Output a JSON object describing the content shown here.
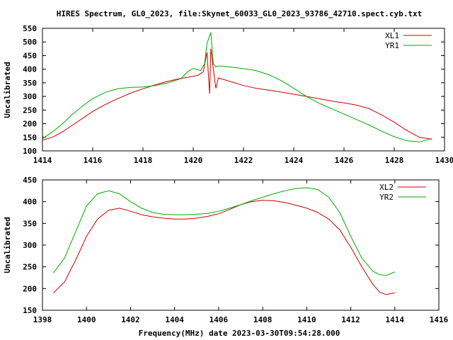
{
  "title": "HIRES Spectrum, GL0_2023, file:Skynet_60033_GL0_2023_93786_42710.spect.cyb.txt",
  "xlabel": "Frequency(MHz) date 2023-03-30T09:54:28.000",
  "chart_data": [
    {
      "type": "line",
      "title": "HIRES Spectrum, GL0_2023, file:Skynet_60033_GL0_2023_93786_42710.spect.cyb.txt",
      "xlabel": "",
      "ylabel": "Uncalibrated",
      "xlim": [
        1414,
        1430
      ],
      "ylim": [
        100,
        550
      ],
      "xticks": [
        1414,
        1416,
        1418,
        1420,
        1422,
        1424,
        1426,
        1428,
        1430
      ],
      "yticks": [
        100,
        150,
        200,
        250,
        300,
        350,
        400,
        450,
        500,
        550
      ],
      "legend": "top-right",
      "grid": false,
      "series": [
        {
          "name": "XL1",
          "color": "#cc0000",
          "x": [
            1414.0,
            1414.4,
            1414.8,
            1415.2,
            1415.6,
            1416.0,
            1416.5,
            1417.0,
            1417.5,
            1418.0,
            1418.5,
            1419.0,
            1419.5,
            1419.9,
            1420.2,
            1420.4,
            1420.55,
            1420.65,
            1420.7,
            1420.8,
            1420.9,
            1421.0,
            1421.5,
            1422.0,
            1422.5,
            1423.0,
            1423.5,
            1424.0,
            1424.5,
            1425.0,
            1425.5,
            1426.0,
            1426.5,
            1427.0,
            1427.5,
            1428.0,
            1428.5,
            1429.0,
            1429.5
          ],
          "values": [
            140,
            150,
            170,
            195,
            220,
            245,
            270,
            292,
            312,
            328,
            343,
            356,
            366,
            372,
            378,
            390,
            462,
            310,
            475,
            400,
            330,
            368,
            354,
            340,
            330,
            323,
            316,
            308,
            300,
            292,
            283,
            276,
            268,
            255,
            232,
            205,
            175,
            150,
            143
          ]
        },
        {
          "name": "YR1",
          "color": "#00aa00",
          "x": [
            1414.0,
            1414.4,
            1414.8,
            1415.2,
            1415.6,
            1416.0,
            1416.5,
            1417.0,
            1417.5,
            1418.0,
            1418.5,
            1419.0,
            1419.5,
            1419.8,
            1420.0,
            1420.3,
            1420.45,
            1420.55,
            1420.7,
            1420.8,
            1420.9,
            1421.0,
            1421.5,
            1422.0,
            1422.5,
            1423.0,
            1423.5,
            1424.0,
            1424.5,
            1425.0,
            1425.5,
            1426.0,
            1426.5,
            1427.0,
            1427.5,
            1428.0,
            1428.5,
            1429.0,
            1429.5
          ],
          "values": [
            145,
            170,
            200,
            235,
            265,
            292,
            315,
            328,
            333,
            335,
            340,
            350,
            365,
            392,
            403,
            395,
            420,
            495,
            535,
            420,
            408,
            412,
            408,
            402,
            395,
            380,
            358,
            330,
            300,
            275,
            255,
            235,
            215,
            195,
            172,
            152,
            137,
            133,
            145
          ]
        }
      ]
    },
    {
      "type": "line",
      "title": "",
      "xlabel": "Frequency(MHz) date 2023-03-30T09:54:28.000",
      "ylabel": "Uncalibrated",
      "xlim": [
        1398,
        1416
      ],
      "ylim": [
        150,
        450
      ],
      "xticks": [
        1398,
        1400,
        1402,
        1404,
        1406,
        1408,
        1410,
        1412,
        1414,
        1416
      ],
      "yticks": [
        150,
        200,
        250,
        300,
        350,
        400,
        450
      ],
      "legend": "top-right",
      "grid": false,
      "series": [
        {
          "name": "XL2",
          "color": "#cc0000",
          "x": [
            1398.5,
            1399.0,
            1399.5,
            1400.0,
            1400.5,
            1401.0,
            1401.5,
            1402.0,
            1402.5,
            1403.0,
            1403.5,
            1404.0,
            1404.5,
            1405.0,
            1405.5,
            1406.0,
            1406.5,
            1407.0,
            1407.5,
            1408.0,
            1408.5,
            1409.0,
            1409.5,
            1410.0,
            1410.5,
            1411.0,
            1411.5,
            1412.0,
            1412.5,
            1413.0,
            1413.3,
            1413.6,
            1414.0
          ],
          "values": [
            190,
            215,
            265,
            320,
            360,
            380,
            385,
            378,
            370,
            365,
            362,
            360,
            360,
            362,
            366,
            372,
            382,
            393,
            400,
            403,
            402,
            398,
            392,
            385,
            375,
            360,
            335,
            295,
            250,
            210,
            192,
            186,
            190
          ]
        },
        {
          "name": "YR2",
          "color": "#00aa00",
          "x": [
            1398.5,
            1399.0,
            1399.5,
            1400.0,
            1400.5,
            1401.0,
            1401.5,
            1402.0,
            1402.5,
            1403.0,
            1403.5,
            1404.0,
            1404.5,
            1405.0,
            1405.5,
            1406.0,
            1406.5,
            1407.0,
            1407.5,
            1408.0,
            1408.5,
            1409.0,
            1409.5,
            1410.0,
            1410.5,
            1411.0,
            1411.5,
            1412.0,
            1412.5,
            1413.0,
            1413.3,
            1413.6,
            1414.0
          ],
          "values": [
            236,
            270,
            330,
            390,
            418,
            425,
            418,
            400,
            385,
            375,
            371,
            370,
            370,
            371,
            373,
            378,
            385,
            393,
            402,
            410,
            418,
            425,
            430,
            432,
            428,
            410,
            375,
            320,
            270,
            240,
            232,
            230,
            238
          ]
        }
      ]
    }
  ]
}
